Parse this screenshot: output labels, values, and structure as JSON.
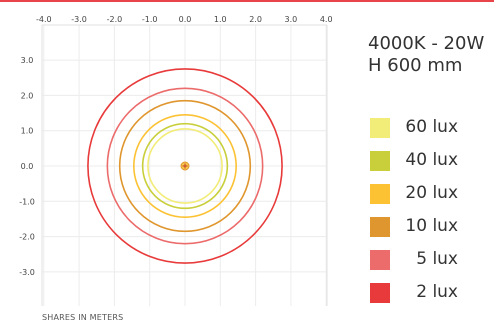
{
  "info": {
    "line1": "4000K - 20W",
    "line2": "H 600 mm"
  },
  "footer": "SHARES IN METERS",
  "chart_data": {
    "type": "isolux-contour",
    "x_ticks": [
      "-4.0",
      "-3.0",
      "-2.0",
      "-1.0",
      "0.0",
      "1.0",
      "2.0",
      "3.0",
      "4.0"
    ],
    "y_ticks": [
      "3.0",
      "2.0",
      "1.0",
      "0.0",
      "-1.0",
      "-2.0",
      "-3.0"
    ],
    "xlim": [
      -4.0,
      4.0
    ],
    "ylim": [
      -4.0,
      4.0
    ],
    "grid": true,
    "legend_position": "right",
    "series": [
      {
        "name": "60 lux",
        "color": "#f2ec78",
        "radius": 1.05
      },
      {
        "name": "40 lux",
        "color": "#c8cf3a",
        "radius": 1.2
      },
      {
        "name": "20 lux",
        "color": "#fcc234",
        "radius": 1.45
      },
      {
        "name": "10 lux",
        "color": "#e0962e",
        "radius": 1.85
      },
      {
        "name": "5 lux",
        "color": "#ec6b6b",
        "radius": 2.2
      },
      {
        "name": "2 lux",
        "color": "#e83a3a",
        "radius": 2.75
      }
    ],
    "source": {
      "x": 0.0,
      "y": 0.0,
      "color": "#e0962e"
    }
  }
}
